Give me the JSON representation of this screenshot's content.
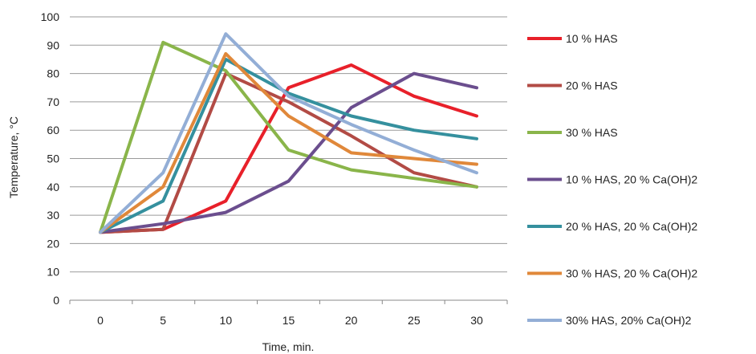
{
  "chart_data": {
    "type": "line",
    "xlabel": "Time, min.",
    "ylabel": "Temperature, °C",
    "ylim": [
      0,
      100
    ],
    "y_ticks": [
      "0",
      "10",
      "20",
      "30",
      "40",
      "50",
      "60",
      "70",
      "80",
      "90",
      "100"
    ],
    "x_ticks": [
      "0",
      "5",
      "10",
      "15",
      "20",
      "25",
      "30"
    ],
    "x": [
      0,
      5,
      10,
      15,
      20,
      25,
      30
    ],
    "grid": "horizontal",
    "legend": "right",
    "series": [
      {
        "name": "10 % HAS",
        "color": "#e8202a",
        "values": [
          24,
          25,
          35,
          75,
          83,
          72,
          65
        ]
      },
      {
        "name": "20 % HAS",
        "color": "#b24b45",
        "values": [
          24,
          25,
          80,
          70,
          58,
          45,
          40
        ]
      },
      {
        "name": "30 % HAS",
        "color": "#8ab54a",
        "values": [
          24,
          91,
          81,
          53,
          46,
          43,
          40
        ]
      },
      {
        "name": "10 % HAS, 20 % Ca(OH)2",
        "color": "#6b4e8e",
        "values": [
          24,
          27,
          31,
          42,
          68,
          80,
          75
        ]
      },
      {
        "name": "20 % HAS, 20 % Ca(OH)2",
        "color": "#35909e",
        "values": [
          24,
          35,
          85,
          73,
          65,
          60,
          57
        ]
      },
      {
        "name": "30 % HAS, 20 % Ca(OH)2",
        "color": "#e0883a",
        "values": [
          24,
          40,
          87,
          65,
          52,
          50,
          48
        ]
      },
      {
        "name": "30% HAS, 20% Ca(OH)2",
        "color": "#93aed6",
        "values": [
          24,
          45,
          94,
          72,
          62,
          53,
          45
        ]
      }
    ]
  }
}
